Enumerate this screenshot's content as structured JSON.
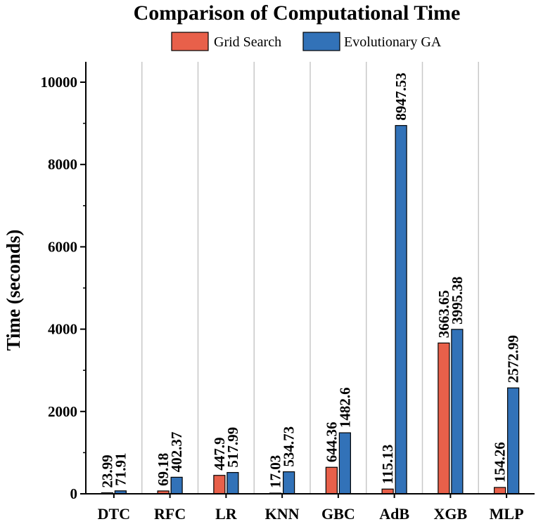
{
  "chart_data": {
    "type": "bar",
    "title": "Comparison of Computational Time",
    "xlabel": "",
    "ylabel": "Time (seconds)",
    "ylim": [
      0,
      10500
    ],
    "yticks": [
      0,
      2000,
      4000,
      6000,
      8000,
      10000
    ],
    "categories": [
      "DTC",
      "RFC",
      "LR",
      "KNN",
      "GBC",
      "AdB",
      "XGB",
      "MLP"
    ],
    "series": [
      {
        "name": "Grid Search",
        "color": "#e8604a",
        "values": [
          23.99,
          69.18,
          447.9,
          17.03,
          644.36,
          115.13,
          3663.65,
          154.26
        ],
        "labels": [
          "23.99",
          "69.18",
          "447.9",
          "17.03",
          "644.36",
          "115.13",
          "3663.65",
          "154.26"
        ]
      },
      {
        "name": "Evolutionary GA",
        "color": "#3272b8",
        "values": [
          71.91,
          402.37,
          517.99,
          534.73,
          1482.6,
          8947.53,
          3995.38,
          2572.99
        ],
        "labels": [
          "71.91",
          "402.37",
          "517.99",
          "534.73",
          "1482.6",
          "8947.53",
          "3995.38",
          "2572.99"
        ]
      }
    ],
    "grid": "vertical-separators",
    "legend_position": "top"
  }
}
